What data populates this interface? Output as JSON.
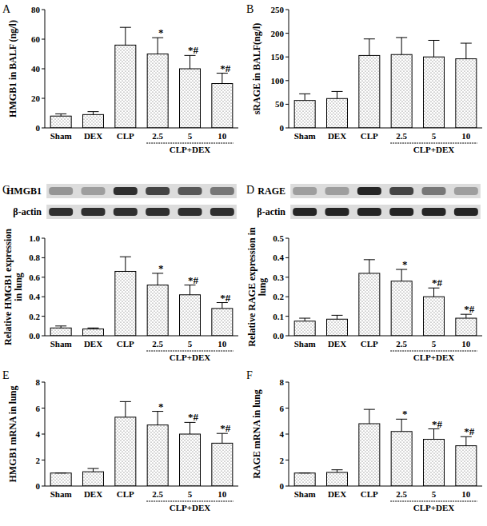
{
  "chart_data": [
    {
      "type": "bar",
      "title": "A",
      "y_label": "HMGB1 in BALF (ng/l)",
      "color": "#ffffff",
      "categories": [
        "Sham",
        "DEX",
        "CLP",
        "2.5",
        "5",
        "10"
      ],
      "values": [
        8,
        9,
        56,
        50,
        40,
        30
      ],
      "errors": [
        1.5,
        2,
        12,
        11,
        9,
        7
      ],
      "annotations": [
        null,
        null,
        null,
        "*",
        "*#",
        "*#"
      ],
      "group_label": {
        "text": "CLP+DEX",
        "from": "2.5",
        "to": "10"
      },
      "ylim": [
        0,
        80
      ],
      "yticks": [
        0,
        20,
        40,
        60,
        80
      ]
    },
    {
      "type": "bar",
      "title": "B",
      "y_label": "sRAGE in BALF(ng/l)",
      "color": "#ffffff",
      "categories": [
        "Sham",
        "DEX",
        "CLP",
        "2.5",
        "5",
        "10"
      ],
      "values": [
        58,
        62,
        153,
        155,
        150,
        146
      ],
      "errors": [
        14,
        15,
        35,
        36,
        35,
        33
      ],
      "group_label": {
        "text": "CLP+DEX",
        "from": "2.5",
        "to": "10"
      },
      "ylim": [
        0,
        250
      ],
      "yticks": [
        0,
        50,
        100,
        150,
        200,
        250
      ]
    },
    {
      "type": "bar",
      "title": "C",
      "y_label": "Relative HMGB1 expression in lung",
      "color": "#ffffff",
      "categories": [
        "Sham",
        "DEX",
        "CLP",
        "2.5",
        "5",
        "10"
      ],
      "values": [
        0.08,
        0.07,
        0.66,
        0.52,
        0.42,
        0.28
      ],
      "errors": [
        0.02,
        0.01,
        0.15,
        0.12,
        0.1,
        0.06
      ],
      "annotations": [
        null,
        null,
        null,
        "*",
        "*#",
        "*#"
      ],
      "group_label": {
        "text": "CLP+DEX",
        "from": "2.5",
        "to": "10"
      },
      "blot": {
        "rows": [
          {
            "label": "HMGB1",
            "intensities": [
              0.35,
              0.3,
              0.85,
              0.75,
              0.65,
              0.5
            ]
          },
          {
            "label": "β-actin",
            "intensities": [
              0.85,
              0.85,
              0.85,
              0.85,
              0.85,
              0.85
            ]
          }
        ]
      },
      "ylim": [
        0,
        1.0
      ],
      "yticks": [
        {
          "value": 0,
          "label": "0.0"
        },
        {
          "value": 0.2,
          "label": "0.2"
        },
        {
          "value": 0.4,
          "label": "0.4"
        },
        {
          "value": 0.6,
          "label": "0.6"
        },
        {
          "value": 0.8,
          "label": "0.8"
        },
        {
          "value": 1.0,
          "label": "1.0"
        }
      ]
    },
    {
      "type": "bar",
      "title": "D",
      "y_label": "Relative RAGE expression in lung",
      "color": "#ffffff",
      "categories": [
        "Sham",
        "DEX",
        "CLP",
        "2.5",
        "5",
        "10"
      ],
      "values": [
        0.075,
        0.085,
        0.32,
        0.28,
        0.2,
        0.09
      ],
      "errors": [
        0.015,
        0.02,
        0.07,
        0.06,
        0.045,
        0.02
      ],
      "annotations": [
        null,
        null,
        null,
        "*",
        "*#",
        "*#"
      ],
      "group_label": {
        "text": "CLP+DEX",
        "from": "2.5",
        "to": "10"
      },
      "blot": {
        "rows": [
          {
            "label": "RAGE",
            "intensities": [
              0.3,
              0.3,
              0.9,
              0.75,
              0.5,
              0.3
            ]
          },
          {
            "label": "β-actin",
            "intensities": [
              0.9,
              0.9,
              0.9,
              0.9,
              0.9,
              0.9
            ]
          }
        ]
      },
      "ylim": [
        0,
        0.5
      ],
      "yticks": [
        {
          "value": 0,
          "label": "0.0"
        },
        {
          "value": 0.1,
          "label": "0.1"
        },
        {
          "value": 0.2,
          "label": "0.2"
        },
        {
          "value": 0.3,
          "label": "0.3"
        },
        {
          "value": 0.4,
          "label": "0.4"
        },
        {
          "value": 0.5,
          "label": "0.5"
        }
      ]
    },
    {
      "type": "bar",
      "title": "E",
      "y_label": "HMGB1 mRNA in lung",
      "color": "#ffffff",
      "categories": [
        "Sham",
        "DEX",
        "CLP",
        "2.5",
        "5",
        "10"
      ],
      "values": [
        1,
        1.1,
        5.3,
        4.7,
        4.0,
        3.3
      ],
      "errors": [
        0,
        0.25,
        1.2,
        1.05,
        0.9,
        0.75
      ],
      "annotations": [
        null,
        null,
        null,
        "*",
        "*#",
        "*#"
      ],
      "group_label": {
        "text": "CLP+DEX",
        "from": "2.5",
        "to": "10"
      },
      "ylim": [
        0,
        8
      ],
      "yticks": [
        0,
        2,
        4,
        6,
        8
      ]
    },
    {
      "type": "bar",
      "title": "F",
      "y_label": "RAGE mRNA in lung",
      "color": "#ffffff",
      "categories": [
        "Sham",
        "DEX",
        "CLP",
        "2.5",
        "5",
        "10"
      ],
      "values": [
        1,
        1.05,
        4.8,
        4.2,
        3.6,
        3.1
      ],
      "errors": [
        0,
        0.2,
        1.1,
        0.95,
        0.8,
        0.7
      ],
      "annotations": [
        null,
        null,
        null,
        "*",
        "*#",
        "*#"
      ],
      "group_label": {
        "text": "CLP+DEX",
        "from": "2.5",
        "to": "10"
      },
      "ylim": [
        0,
        8
      ],
      "yticks": [
        0,
        2,
        4,
        6,
        8
      ]
    }
  ]
}
